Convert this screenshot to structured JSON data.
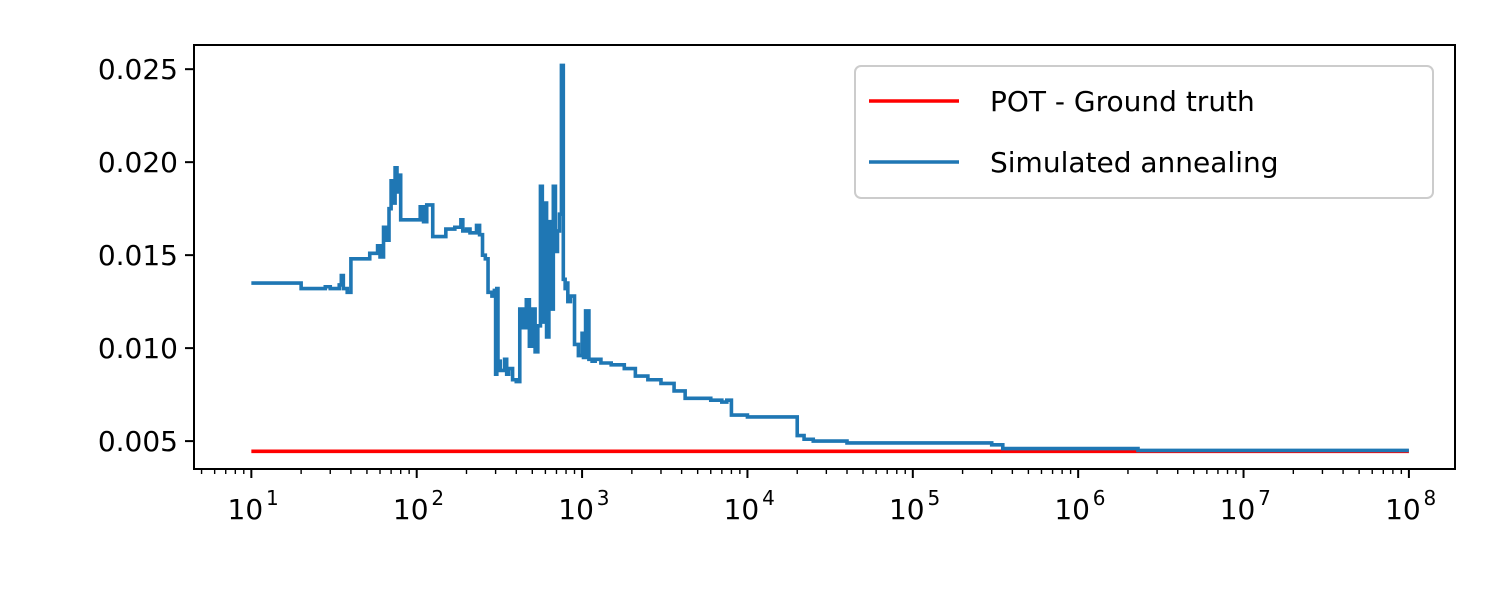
{
  "chart_data": {
    "type": "line",
    "title": "",
    "xlabel": "",
    "ylabel": "",
    "x_scale": "log",
    "xlim": [
      4.5,
      190000000
    ],
    "ylim": [
      0.0035,
      0.0263
    ],
    "grid": false,
    "legend_position": "top-right",
    "x_ticks": [
      {
        "value": 10,
        "label": "10^1",
        "base": "10",
        "exp": "1"
      },
      {
        "value": 100,
        "label": "10^2",
        "base": "10",
        "exp": "2"
      },
      {
        "value": 1000,
        "label": "10^3",
        "base": "10",
        "exp": "3"
      },
      {
        "value": 10000,
        "label": "10^4",
        "base": "10",
        "exp": "4"
      },
      {
        "value": 100000,
        "label": "10^5",
        "base": "10",
        "exp": "5"
      },
      {
        "value": 1000000,
        "label": "10^6",
        "base": "10",
        "exp": "6"
      },
      {
        "value": 10000000,
        "label": "10^7",
        "base": "10",
        "exp": "7"
      },
      {
        "value": 100000000,
        "label": "10^8",
        "base": "10",
        "exp": "8"
      }
    ],
    "y_ticks": [
      {
        "value": 0.005,
        "label": "0.005"
      },
      {
        "value": 0.01,
        "label": "0.010"
      },
      {
        "value": 0.015,
        "label": "0.015"
      },
      {
        "value": 0.02,
        "label": "0.020"
      },
      {
        "value": 0.025,
        "label": "0.025"
      }
    ],
    "series": [
      {
        "name": "POT - Ground truth",
        "color": "#ff0000",
        "x": [
          10,
          100000000
        ],
        "y": [
          0.00445,
          0.00445
        ]
      },
      {
        "name": "Simulated annealing",
        "color": "#1f77b4",
        "x": [
          10,
          15,
          18,
          20,
          24,
          28,
          30,
          34,
          35,
          36,
          38,
          40,
          42,
          45,
          52,
          58,
          60,
          63,
          65,
          68,
          70,
          72,
          74,
          76,
          78,
          80,
          90,
          100,
          105,
          110,
          115,
          125,
          135,
          150,
          170,
          185,
          190,
          200,
          210,
          230,
          240,
          250,
          260,
          270,
          285,
          295,
          300,
          305,
          310,
          320,
          340,
          350,
          360,
          380,
          400,
          420,
          440,
          460,
          480,
          500,
          520,
          540,
          560,
          575,
          590,
          610,
          630,
          650,
          670,
          690,
          710,
          730,
          750,
          770,
          790,
          800,
          820,
          850,
          900,
          950,
          1000,
          1020,
          1050,
          1100,
          1150,
          1200,
          1300,
          1500,
          1800,
          2100,
          2500,
          3000,
          3600,
          4200,
          5000,
          6000,
          7000,
          7500,
          8000,
          10000,
          15000,
          18000,
          20000,
          22000,
          25000,
          30000,
          40000,
          60000,
          100000,
          200000,
          300000,
          350000,
          500000,
          1000000,
          2000000,
          2300000,
          5000000,
          10000000,
          50000000,
          100000000
        ],
        "y": [
          0.0135,
          0.0135,
          0.0135,
          0.0132,
          0.0132,
          0.0133,
          0.0132,
          0.0134,
          0.0139,
          0.0132,
          0.013,
          0.0148,
          0.0148,
          0.0148,
          0.0151,
          0.0155,
          0.0149,
          0.0165,
          0.0158,
          0.0175,
          0.019,
          0.0178,
          0.0197,
          0.0184,
          0.0193,
          0.0169,
          0.0169,
          0.0169,
          0.0176,
          0.0168,
          0.0177,
          0.016,
          0.016,
          0.0164,
          0.0165,
          0.0169,
          0.0163,
          0.0164,
          0.0162,
          0.0166,
          0.0161,
          0.015,
          0.0148,
          0.013,
          0.0128,
          0.0131,
          0.0086,
          0.0132,
          0.0093,
          0.0088,
          0.0094,
          0.0086,
          0.0089,
          0.0083,
          0.0082,
          0.0121,
          0.0111,
          0.0126,
          0.0101,
          0.0121,
          0.0098,
          0.0112,
          0.0187,
          0.0114,
          0.0178,
          0.0106,
          0.0168,
          0.0121,
          0.0187,
          0.0152,
          0.0163,
          0.0172,
          0.0252,
          0.0137,
          0.0132,
          0.0135,
          0.0125,
          0.0128,
          0.0102,
          0.0096,
          0.0108,
          0.0095,
          0.012,
          0.0094,
          0.0093,
          0.0094,
          0.0092,
          0.0091,
          0.0089,
          0.0085,
          0.0083,
          0.0081,
          0.0077,
          0.0073,
          0.0073,
          0.0072,
          0.0071,
          0.0072,
          0.0064,
          0.0063,
          0.0063,
          0.0063,
          0.0053,
          0.0051,
          0.005,
          0.005,
          0.0049,
          0.0049,
          0.0049,
          0.0049,
          0.0048,
          0.0046,
          0.0046,
          0.0046,
          0.0046,
          0.0045,
          0.0045,
          0.0045,
          0.0045,
          0.0045
        ]
      }
    ]
  }
}
